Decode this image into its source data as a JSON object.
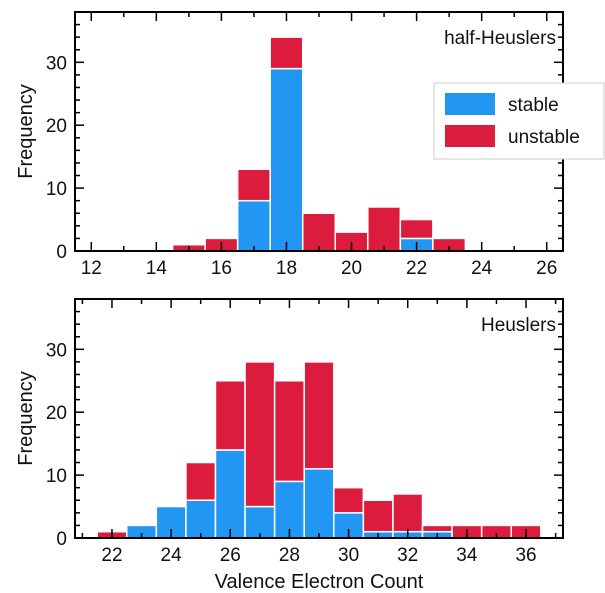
{
  "colors": {
    "stable": "#2196f3",
    "unstable": "#dc1c3c",
    "axis": "#000000",
    "bar_edge": "#ffffff"
  },
  "legend": {
    "placement": "right",
    "entries": [
      {
        "key": "stable",
        "label": "stable"
      },
      {
        "key": "unstable",
        "label": "unstable"
      }
    ]
  },
  "chart_data": [
    {
      "type": "bar",
      "stacked": true,
      "title": "half-Heuslers",
      "xlabel": "",
      "ylabel": "Frequency",
      "xlim": [
        11.5,
        26.5
      ],
      "ylim": [
        0,
        38
      ],
      "xticks": [
        12,
        14,
        16,
        18,
        20,
        22,
        24,
        26
      ],
      "yticks": [
        0,
        10,
        20,
        30
      ],
      "x": [
        15,
        16,
        17,
        18,
        19,
        20,
        21,
        22,
        23
      ],
      "series": [
        {
          "name": "stable",
          "values": [
            0,
            0,
            8,
            29,
            0,
            0,
            0,
            2,
            0
          ]
        },
        {
          "name": "unstable",
          "values": [
            1,
            2,
            5,
            5,
            6,
            3,
            7,
            3,
            2
          ]
        }
      ]
    },
    {
      "type": "bar",
      "stacked": true,
      "title": "Heuslers",
      "xlabel": "Valence Electron Count",
      "ylabel": "Frequency",
      "xlim": [
        20.75,
        37.25
      ],
      "ylim": [
        0,
        38
      ],
      "xticks": [
        22,
        24,
        26,
        28,
        30,
        32,
        34,
        36
      ],
      "yticks": [
        0,
        10,
        20,
        30
      ],
      "x": [
        22,
        23,
        24,
        25,
        26,
        27,
        28,
        29,
        30,
        31,
        32,
        33,
        34,
        35,
        36
      ],
      "series": [
        {
          "name": "stable",
          "values": [
            0,
            2,
            5,
            6,
            14,
            5,
            9,
            11,
            4,
            1,
            1,
            1,
            0,
            0,
            0
          ]
        },
        {
          "name": "unstable",
          "values": [
            1,
            0,
            0,
            6,
            11,
            23,
            16,
            17,
            4,
            5,
            6,
            1,
            2,
            2,
            2
          ]
        }
      ]
    }
  ]
}
